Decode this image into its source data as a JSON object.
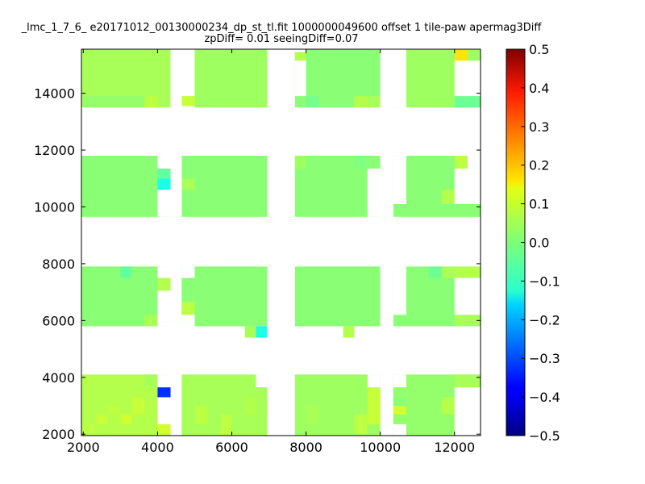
{
  "chart_data": {
    "type": "heatmap",
    "title": [
      "_lmc_1_7_6_ e20171012_00130000234_dp_st_tl.fit 1000000049600 offset 1 tile-paw apermag3Diff",
      "zpDiff= 0.01 seeingDiff=0.07"
    ],
    "xlabel": "",
    "ylabel": "",
    "xlim": [
      1950,
      12700
    ],
    "ylim": [
      1950,
      15550
    ],
    "x_ticks": [
      "2000",
      "4000",
      "6000",
      "8000",
      "10000",
      "12000"
    ],
    "y_ticks": [
      "2000",
      "4000",
      "6000",
      "8000",
      "10000",
      "12000",
      "14000"
    ],
    "colorbar": {
      "colormap": "jet",
      "range": [
        -0.5,
        0.5
      ],
      "ticks": [
        "−0.5",
        "−0.4",
        "−0.3",
        "−0.2",
        "−0.1",
        "0.0",
        "0.1",
        "0.2",
        "0.3",
        "0.4",
        "0.5"
      ]
    },
    "base_value": 0.01,
    "regions": [
      {
        "x": [
          1950,
          4350
        ],
        "y": [
          1950,
          4100
        ],
        "value": 0.05
      },
      {
        "x": [
          4650,
          6950
        ],
        "y": [
          1950,
          4100
        ],
        "value": 0.04
      },
      {
        "x": [
          7700,
          10000
        ],
        "y": [
          1950,
          4100
        ],
        "value": 0.03
      },
      {
        "x": [
          10350,
          12700
        ],
        "y": [
          1950,
          4100
        ],
        "value": 0.02
      },
      {
        "x": [
          1950,
          4350
        ],
        "y": [
          5800,
          7900
        ],
        "value": 0.01
      },
      {
        "x": [
          4650,
          6950
        ],
        "y": [
          5800,
          7900
        ],
        "value": 0.01
      },
      {
        "x": [
          7700,
          10000
        ],
        "y": [
          5800,
          7900
        ],
        "value": 0.01
      },
      {
        "x": [
          10350,
          12700
        ],
        "y": [
          5800,
          7900
        ],
        "value": 0.01
      },
      {
        "x": [
          1950,
          4350
        ],
        "y": [
          9650,
          11800
        ],
        "value": 0.01
      },
      {
        "x": [
          4650,
          6950
        ],
        "y": [
          9650,
          11800
        ],
        "value": 0.01
      },
      {
        "x": [
          7700,
          10000
        ],
        "y": [
          9650,
          11800
        ],
        "value": 0.01
      },
      {
        "x": [
          10350,
          12700
        ],
        "y": [
          9650,
          11800
        ],
        "value": 0.01
      },
      {
        "x": [
          1950,
          4350
        ],
        "y": [
          13500,
          15550
        ],
        "value": 0.04
      },
      {
        "x": [
          4650,
          6950
        ],
        "y": [
          13500,
          15550
        ],
        "value": 0.03
      },
      {
        "x": [
          7700,
          10000
        ],
        "y": [
          13500,
          15550
        ],
        "value": 0.01
      },
      {
        "x": [
          10350,
          12700
        ],
        "y": [
          13500,
          15550
        ],
        "value": 0.03
      }
    ],
    "blank_cells": [
      {
        "x": [
          4000,
          4350
        ],
        "y": [
          3650,
          4100
        ]
      },
      {
        "x": [
          4000,
          4350
        ],
        "y": [
          2350,
          3300
        ]
      },
      {
        "x": [
          6650,
          6950
        ],
        "y": [
          3650,
          4100
        ]
      },
      {
        "x": [
          9650,
          10000
        ],
        "y": [
          3650,
          4100
        ]
      },
      {
        "x": [
          10350,
          10700
        ],
        "y": [
          3650,
          4100
        ]
      },
      {
        "x": [
          10350,
          10700
        ],
        "y": [
          1950,
          2350
        ]
      },
      {
        "x": [
          12000,
          12700
        ],
        "y": [
          1950,
          3650
        ]
      },
      {
        "x": [
          4000,
          4350
        ],
        "y": [
          7500,
          7900
        ]
      },
      {
        "x": [
          4000,
          4350
        ],
        "y": [
          5800,
          7050
        ]
      },
      {
        "x": [
          4650,
          5000
        ],
        "y": [
          7500,
          7900
        ]
      },
      {
        "x": [
          4650,
          5000
        ],
        "y": [
          5800,
          6200
        ]
      },
      {
        "x": [
          10000,
          10350
        ],
        "y": [
          5800,
          7900
        ]
      },
      {
        "x": [
          10350,
          10700
        ],
        "y": [
          6200,
          7900
        ]
      },
      {
        "x": [
          12000,
          12700
        ],
        "y": [
          6200,
          7500
        ]
      },
      {
        "x": [
          4000,
          4350
        ],
        "y": [
          9650,
          10600
        ]
      },
      {
        "x": [
          4000,
          4350
        ],
        "y": [
          11350,
          11800
        ]
      },
      {
        "x": [
          4350,
          4650
        ],
        "y": [
          9650,
          11800
        ]
      },
      {
        "x": [
          9650,
          10000
        ],
        "y": [
          9650,
          11350
        ]
      },
      {
        "x": [
          10000,
          10350
        ],
        "y": [
          9650,
          11800
        ]
      },
      {
        "x": [
          10350,
          10700
        ],
        "y": [
          10100,
          11800
        ]
      },
      {
        "x": [
          12000,
          12700
        ],
        "y": [
          10100,
          11350
        ]
      },
      {
        "x": [
          12350,
          12700
        ],
        "y": [
          11350,
          11800
        ]
      },
      {
        "x": [
          4350,
          4650
        ],
        "y": [
          13500,
          15550
        ]
      },
      {
        "x": [
          4650,
          5000
        ],
        "y": [
          13900,
          15550
        ]
      },
      {
        "x": [
          4650,
          5000
        ],
        "y": [
          13500,
          13550
        ]
      },
      {
        "x": [
          7700,
          8000
        ],
        "y": [
          13900,
          15150
        ]
      },
      {
        "x": [
          7700,
          8000
        ],
        "y": [
          15450,
          15550
        ]
      },
      {
        "x": [
          10000,
          10700
        ],
        "y": [
          13500,
          15550
        ]
      },
      {
        "x": [
          12000,
          12700
        ],
        "y": [
          13900,
          15150
        ]
      }
    ],
    "cells": [
      {
        "x": [
          2000,
          2350
        ],
        "y": [
          2000,
          2350
        ],
        "value": 0.06
      },
      {
        "x": [
          2350,
          2650
        ],
        "y": [
          2350,
          2700
        ],
        "value": 0.07
      },
      {
        "x": [
          2650,
          3000
        ],
        "y": [
          2700,
          3000
        ],
        "value": 0.06
      },
      {
        "x": [
          3000,
          3300
        ],
        "y": [
          2350,
          2700
        ],
        "value": 0.08
      },
      {
        "x": [
          3300,
          3650
        ],
        "y": [
          2700,
          3300
        ],
        "value": 0.07
      },
      {
        "x": [
          3650,
          4000
        ],
        "y": [
          3650,
          4100
        ],
        "value": 0.04
      },
      {
        "x": [
          4000,
          4350
        ],
        "y": [
          2000,
          2350
        ],
        "value": 0.08
      },
      {
        "x": [
          4000,
          4350
        ],
        "y": [
          3300,
          3650
        ],
        "value": -0.33
      },
      {
        "x": [
          5000,
          5350
        ],
        "y": [
          2350,
          3000
        ],
        "value": 0.06
      },
      {
        "x": [
          5700,
          6000
        ],
        "y": [
          2000,
          2700
        ],
        "value": 0.06
      },
      {
        "x": [
          6350,
          6650
        ],
        "y": [
          2700,
          3300
        ],
        "value": 0.05
      },
      {
        "x": [
          8000,
          8350
        ],
        "y": [
          2350,
          3000
        ],
        "value": 0.04
      },
      {
        "x": [
          9300,
          9650
        ],
        "y": [
          2000,
          2700
        ],
        "value": 0.06
      },
      {
        "x": [
          9650,
          10000
        ],
        "y": [
          2350,
          3650
        ],
        "value": 0.07
      },
      {
        "x": [
          10350,
          10700
        ],
        "y": [
          2700,
          3000
        ],
        "value": 0.08
      },
      {
        "x": [
          10350,
          10700
        ],
        "y": [
          3000,
          3300
        ],
        "value": 0.01
      },
      {
        "x": [
          11650,
          12000
        ],
        "y": [
          2700,
          3300
        ],
        "value": 0.05
      },
      {
        "x": [
          12000,
          12700
        ],
        "y": [
          3650,
          4100
        ],
        "value": 0.04
      },
      {
        "x": [
          3000,
          3300
        ],
        "y": [
          7500,
          7900
        ],
        "value": -0.03
      },
      {
        "x": [
          3650,
          4000
        ],
        "y": [
          5800,
          6200
        ],
        "value": 0.04
      },
      {
        "x": [
          4000,
          4350
        ],
        "y": [
          7050,
          7500
        ],
        "value": 0.05
      },
      {
        "x": [
          4650,
          5000
        ],
        "y": [
          6200,
          6650
        ],
        "value": 0.06
      },
      {
        "x": [
          6350,
          6650
        ],
        "y": [
          5400,
          5800
        ],
        "value": 0.04
      },
      {
        "x": [
          6650,
          6950
        ],
        "y": [
          5400,
          5800
        ],
        "value": -0.1
      },
      {
        "x": [
          9000,
          9300
        ],
        "y": [
          5400,
          5800
        ],
        "value": 0.05
      },
      {
        "x": [
          11300,
          11650
        ],
        "y": [
          7500,
          7900
        ],
        "value": -0.02
      },
      {
        "x": [
          11650,
          12000
        ],
        "y": [
          7500,
          7900
        ],
        "value": 0.04
      },
      {
        "x": [
          12000,
          12700
        ],
        "y": [
          7500,
          7900
        ],
        "value": 0.05
      },
      {
        "x": [
          12000,
          12700
        ],
        "y": [
          5800,
          6200
        ],
        "value": 0.04
      },
      {
        "x": [
          4000,
          4350
        ],
        "y": [
          10600,
          11000
        ],
        "value": -0.1
      },
      {
        "x": [
          4000,
          4350
        ],
        "y": [
          11000,
          11350
        ],
        "value": -0.03
      },
      {
        "x": [
          4650,
          5000
        ],
        "y": [
          10600,
          11000
        ],
        "value": 0.04
      },
      {
        "x": [
          7700,
          8000
        ],
        "y": [
          11350,
          11800
        ],
        "value": 0.03
      },
      {
        "x": [
          9300,
          9650
        ],
        "y": [
          11350,
          11800
        ],
        "value": 0.0
      },
      {
        "x": [
          11650,
          12000
        ],
        "y": [
          10100,
          10600
        ],
        "value": 0.05
      },
      {
        "x": [
          12000,
          12350
        ],
        "y": [
          11350,
          11800
        ],
        "value": 0.06
      },
      {
        "x": [
          2000,
          4000
        ],
        "y": [
          13500,
          13900
        ],
        "value": 0.02
      },
      {
        "x": [
          3650,
          4000
        ],
        "y": [
          13500,
          13900
        ],
        "value": 0.06
      },
      {
        "x": [
          4650,
          5000
        ],
        "y": [
          13550,
          13900
        ],
        "value": 0.07
      },
      {
        "x": [
          8000,
          8350
        ],
        "y": [
          13500,
          13900
        ],
        "value": -0.01
      },
      {
        "x": [
          9300,
          9650
        ],
        "y": [
          13500,
          13900
        ],
        "value": 0.05
      },
      {
        "x": [
          9650,
          10000
        ],
        "y": [
          13500,
          13900
        ],
        "value": 0.04
      },
      {
        "x": [
          7700,
          8000
        ],
        "y": [
          15150,
          15450
        ],
        "value": 0.05
      },
      {
        "x": [
          12000,
          12350
        ],
        "y": [
          15150,
          15550
        ],
        "value": 0.15
      },
      {
        "x": [
          12000,
          12700
        ],
        "y": [
          13500,
          13900
        ],
        "value": -0.02
      }
    ]
  }
}
